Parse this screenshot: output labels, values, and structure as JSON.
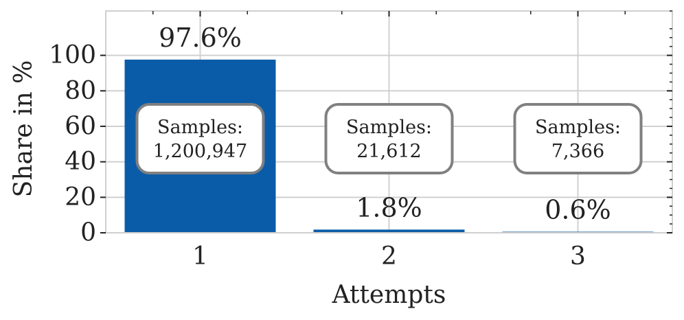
{
  "chart_data": {
    "type": "bar",
    "categories": [
      "1",
      "2",
      "3"
    ],
    "values": [
      97.6,
      1.8,
      0.6
    ],
    "value_labels": [
      "97.6%",
      "1.8%",
      "0.6%"
    ],
    "annotations": [
      {
        "title": "Samples:",
        "value": "1,200,947"
      },
      {
        "title": "Samples:",
        "value": "21,612"
      },
      {
        "title": "Samples:",
        "value": "7,366"
      }
    ],
    "xlabel": "Attempts",
    "ylabel": "Share in %",
    "ylim": [
      0,
      125
    ],
    "yticks": [
      0,
      20,
      40,
      60,
      80,
      100
    ],
    "grid": true,
    "colors": {
      "bar": "#0b5ca8",
      "grid": "#d0d0d0",
      "frame": "#cfcfcf",
      "box_border": "#808080"
    }
  }
}
